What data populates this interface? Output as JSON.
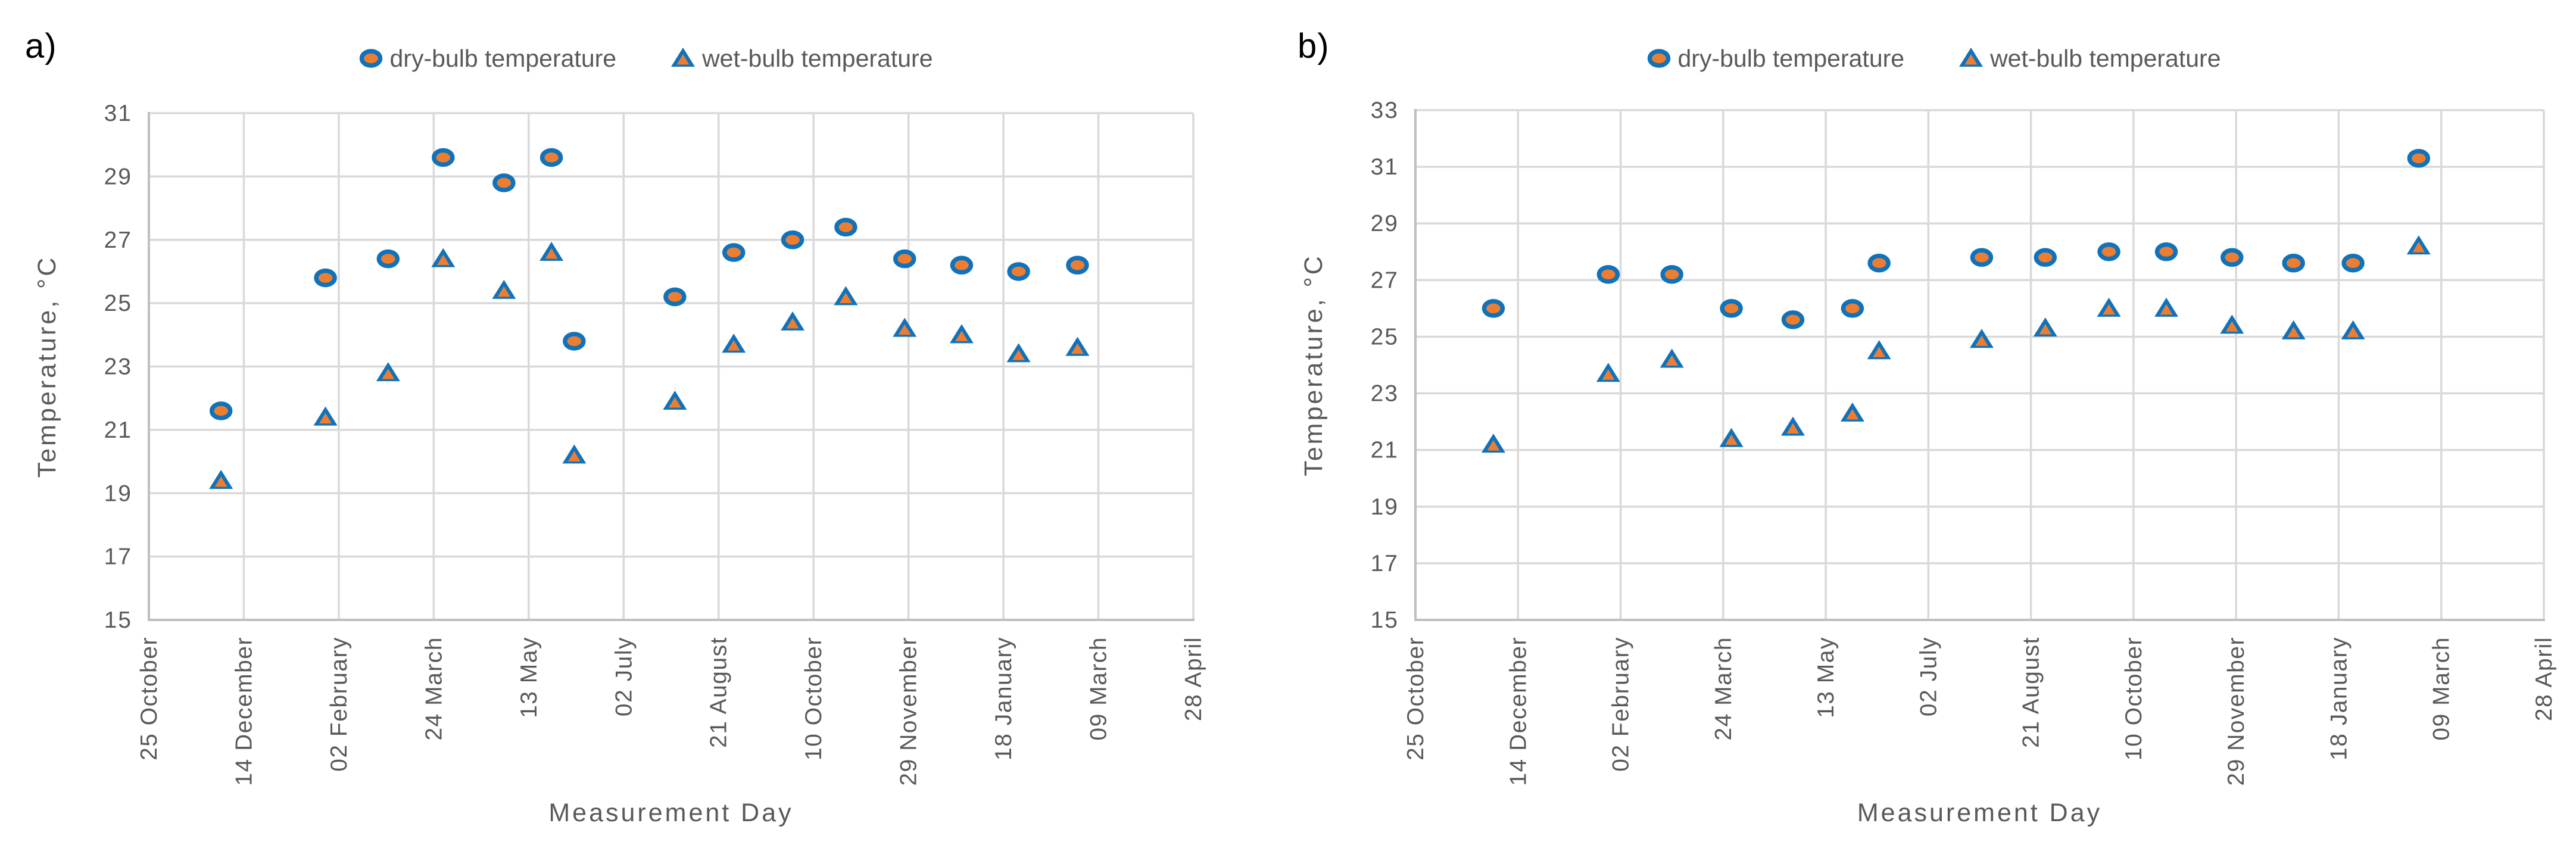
{
  "figure": {
    "background": "#ffffff",
    "panel_labels": [
      "a)",
      "b)"
    ]
  },
  "colors": {
    "marker_fill_orange": "#ED7D31",
    "marker_stroke_blue": "#1072BA",
    "gridline": "#D9D9D9",
    "axis_line": "#BFBFBF",
    "axis_text": "#595959",
    "panel_label_text": "#000000"
  },
  "chart_data": [
    {
      "type": "scatter",
      "panel_label": "a)",
      "title": "",
      "xlabel": "Measurement Day",
      "ylabel": "Temperature, °C",
      "ylim": [
        15,
        31
      ],
      "ytick_step": 2,
      "ytick_labels": [
        15,
        17,
        19,
        21,
        23,
        25,
        27,
        29,
        31
      ],
      "x_tick_labels": [
        "25 October",
        "14 December",
        "02 February",
        "24 March",
        "13 May",
        "02 July",
        "21 August",
        "10 October",
        "29 November",
        "18 January",
        "09 March",
        "28 April"
      ],
      "x_tick_interval_days": 50,
      "x_range_days": [
        0,
        550
      ],
      "grid": true,
      "legend_position": "top-center",
      "series": [
        {
          "name": "dry-bulb temperature",
          "marker": "circle",
          "x_days": [
            38,
            93,
            126,
            155,
            187,
            212,
            224,
            277,
            308,
            339,
            367,
            398,
            428,
            458,
            489
          ],
          "y": [
            21.6,
            25.8,
            26.4,
            29.6,
            28.8,
            29.6,
            23.8,
            25.2,
            26.6,
            27.0,
            27.4,
            26.4,
            26.2,
            26.0,
            26.2
          ]
        },
        {
          "name": "wet-bulb temperature",
          "marker": "triangle",
          "x_days": [
            38,
            93,
            126,
            155,
            187,
            212,
            224,
            277,
            308,
            339,
            367,
            398,
            428,
            458,
            489
          ],
          "y": [
            19.4,
            21.4,
            22.8,
            26.4,
            25.4,
            26.6,
            20.2,
            21.9,
            23.7,
            24.4,
            25.2,
            24.2,
            24.0,
            23.4,
            23.6
          ]
        }
      ]
    },
    {
      "type": "scatter",
      "panel_label": "b)",
      "title": "",
      "xlabel": "Measurement Day",
      "ylabel": "Temperature, °C",
      "ylim": [
        15,
        33
      ],
      "ytick_step": 2,
      "ytick_labels": [
        15,
        17,
        19,
        21,
        23,
        25,
        27,
        29,
        31,
        33
      ],
      "x_tick_labels": [
        "25 October",
        "14 December",
        "02 February",
        "24 March",
        "13 May",
        "02 July",
        "21 August",
        "10 October",
        "29 November",
        "18 January",
        "09 March",
        "28 April"
      ],
      "x_tick_interval_days": 50,
      "x_range_days": [
        0,
        550
      ],
      "grid": true,
      "legend_position": "top-center",
      "series": [
        {
          "name": "dry-bulb temperature",
          "marker": "circle",
          "x_days": [
            38,
            94,
            125,
            154,
            184,
            213,
            226,
            276,
            307,
            338,
            366,
            398,
            428,
            457,
            489
          ],
          "y": [
            26.0,
            27.2,
            27.2,
            26.0,
            25.6,
            26.0,
            27.6,
            27.8,
            27.8,
            28.0,
            28.0,
            27.8,
            27.6,
            27.6,
            31.3
          ]
        },
        {
          "name": "wet-bulb temperature",
          "marker": "triangle",
          "x_days": [
            38,
            94,
            125,
            154,
            184,
            213,
            226,
            276,
            307,
            338,
            366,
            398,
            428,
            457,
            489
          ],
          "y": [
            21.2,
            23.7,
            24.2,
            21.4,
            21.8,
            22.3,
            24.5,
            24.9,
            25.3,
            26.0,
            26.0,
            25.4,
            25.2,
            25.2,
            28.2
          ]
        }
      ]
    }
  ]
}
